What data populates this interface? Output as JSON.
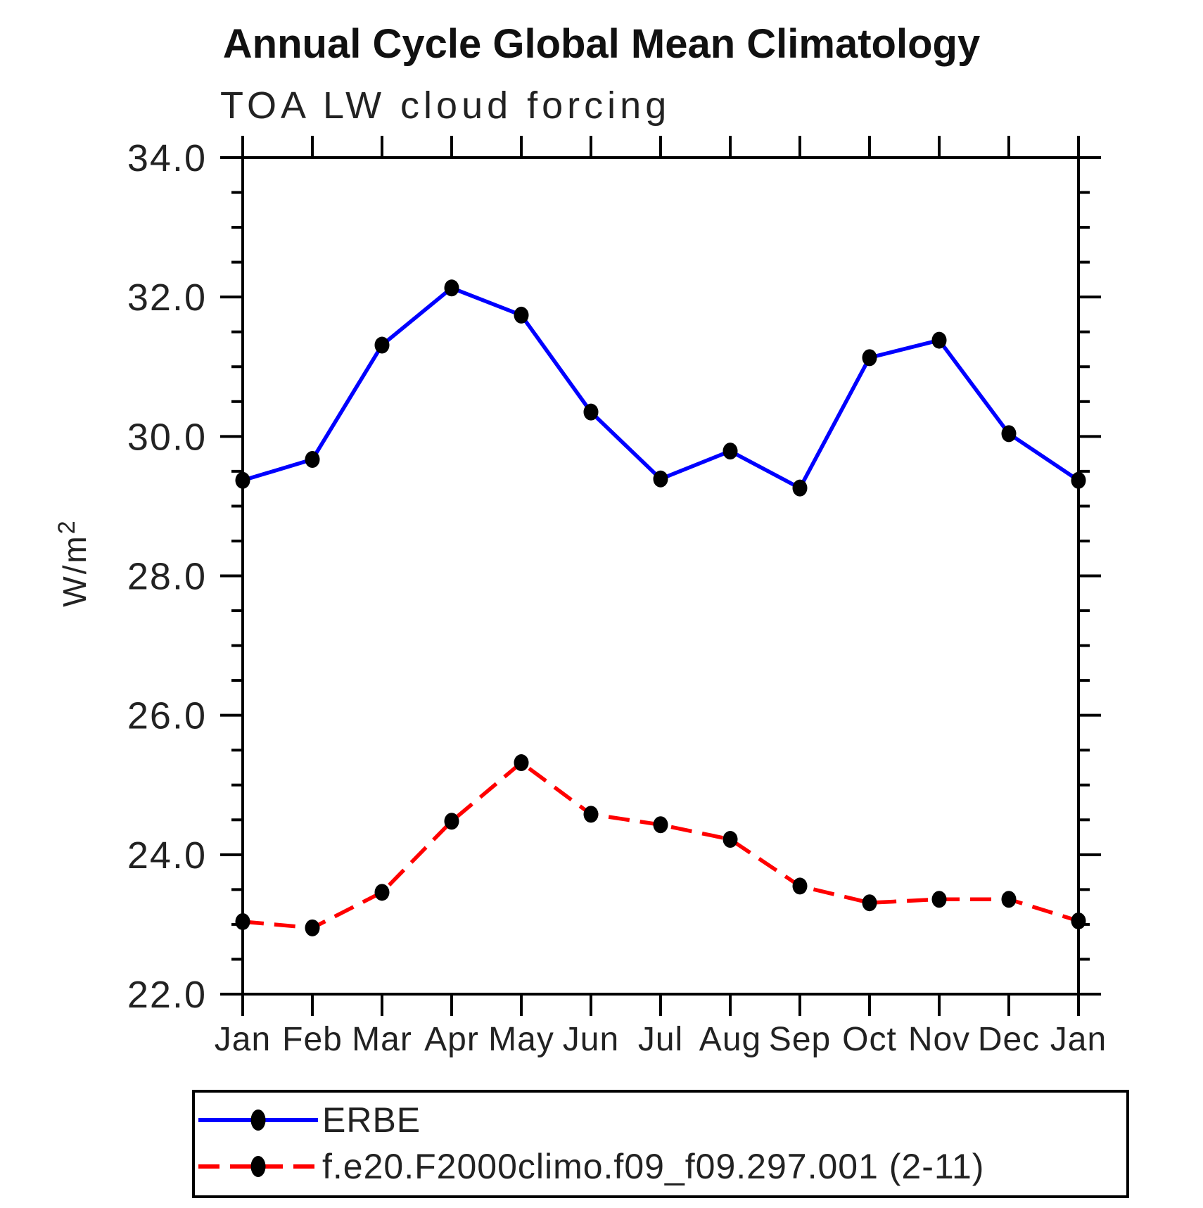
{
  "title": "Annual Cycle Global Mean Climatology",
  "subtitle": "TOA LW cloud forcing",
  "ylabel": "W/m",
  "ylabel_exponent": "2",
  "legend": {
    "items": [
      {
        "label": "ERBE"
      },
      {
        "label": "f.e20.F2000climo.f09_f09.297.001 (2-11)"
      }
    ]
  },
  "chart_data": {
    "type": "line",
    "categories": [
      "Jan",
      "Feb",
      "Mar",
      "Apr",
      "May",
      "Jun",
      "Jul",
      "Aug",
      "Sep",
      "Oct",
      "Nov",
      "Dec",
      "Jan"
    ],
    "series": [
      {
        "name": "ERBE",
        "color": "#0000ff",
        "line_style": "solid",
        "marker": "filled-black-dot",
        "values": [
          29.37,
          29.67,
          31.31,
          32.13,
          31.74,
          30.35,
          29.39,
          29.79,
          29.26,
          31.13,
          31.38,
          30.04,
          29.37
        ]
      },
      {
        "name": "f.e20.F2000climo.f09_f09.297.001 (2-11)",
        "color": "#ff0000",
        "line_style": "dashed",
        "marker": "filled-black-dot",
        "values": [
          23.04,
          22.95,
          23.46,
          24.48,
          25.32,
          24.58,
          24.43,
          24.22,
          23.55,
          23.31,
          23.36,
          23.36,
          23.05
        ]
      }
    ],
    "ylabel": "W/m^2",
    "ylim": [
      22.0,
      34.0
    ],
    "ytick_major_step": 2.0,
    "ytick_minor_step": 0.5,
    "ytick_labels": [
      "22.0",
      "24.0",
      "26.0",
      "28.0",
      "30.0",
      "32.0",
      "34.0"
    ],
    "grid": false,
    "legend_position": "bottom-left-box"
  }
}
